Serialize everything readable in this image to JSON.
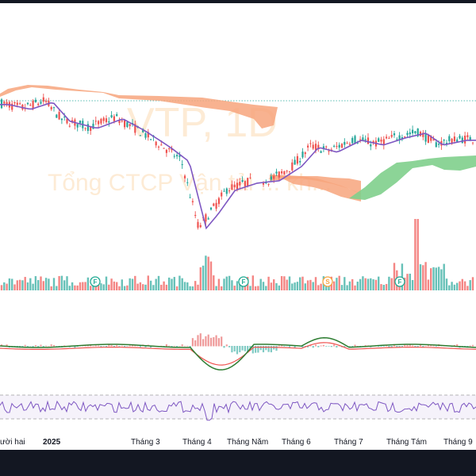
{
  "chart_data": {
    "type": "candlestick",
    "watermark": {
      "symbol": "VTP, 1D",
      "name": "Tổng CTCP Vận tải ... kh..."
    },
    "x_axis": {
      "ticks": [
        {
          "label": "ười hai",
          "bold": false
        },
        {
          "label": "2025",
          "bold": true
        },
        {
          "label": "Tháng 3",
          "bold": false
        },
        {
          "label": "Tháng 4",
          "bold": false
        },
        {
          "label": "Tháng Năm",
          "bold": false
        },
        {
          "label": "Tháng 6",
          "bold": false
        },
        {
          "label": "Tháng 7",
          "bold": false
        },
        {
          "label": "Tháng Tám",
          "bold": false
        },
        {
          "label": "Tháng 9",
          "bold": false
        }
      ]
    },
    "price_trend": [
      [
        "2024-12-20",
        118
      ],
      [
        "2025-01-02",
        116
      ],
      [
        "2025-01-15",
        119
      ],
      [
        "2025-01-25",
        111
      ],
      [
        "2025-02-10",
        108
      ],
      [
        "2025-02-25",
        112
      ],
      [
        "2025-03-10",
        107
      ],
      [
        "2025-03-25",
        100
      ],
      [
        "2025-04-05",
        94
      ],
      [
        "2025-04-15",
        66
      ],
      [
        "2025-04-22",
        72
      ],
      [
        "2025-05-02",
        82
      ],
      [
        "2025-05-15",
        85
      ],
      [
        "2025-05-28",
        86
      ],
      [
        "2025-06-10",
        92
      ],
      [
        "2025-06-20",
        100
      ],
      [
        "2025-07-01",
        98
      ],
      [
        "2025-07-15",
        103
      ],
      [
        "2025-07-28",
        101
      ],
      [
        "2025-08-10",
        104
      ],
      [
        "2025-08-22",
        106
      ],
      [
        "2025-09-01",
        101
      ],
      [
        "2025-09-15",
        103
      ]
    ],
    "event_markers": [
      {
        "label": "F",
        "color": "#22ab94"
      },
      {
        "label": "F",
        "color": "#22ab94"
      },
      {
        "label": "S",
        "color": "#f7a541"
      },
      {
        "label": "F",
        "color": "#22ab94"
      }
    ],
    "series": [
      {
        "name": "Moving average",
        "color": "#7e57c2"
      },
      {
        "name": "Ichimoku cloud bearish",
        "color": "#f7a57c"
      },
      {
        "name": "Ichimoku cloud bullish",
        "color": "#7fcf8c"
      },
      {
        "name": "Volume",
        "colors": [
          "#26a69a",
          "#ef5350"
        ]
      },
      {
        "name": "MACD",
        "color": "#2e7d32"
      },
      {
        "name": "Signal",
        "color": "#ef5350"
      },
      {
        "name": "RSI",
        "color": "#7e57c2"
      }
    ],
    "colors": {
      "up": "#26a69a",
      "down": "#ef5350",
      "panel": "#ffffff",
      "frame": "#131722"
    }
  }
}
